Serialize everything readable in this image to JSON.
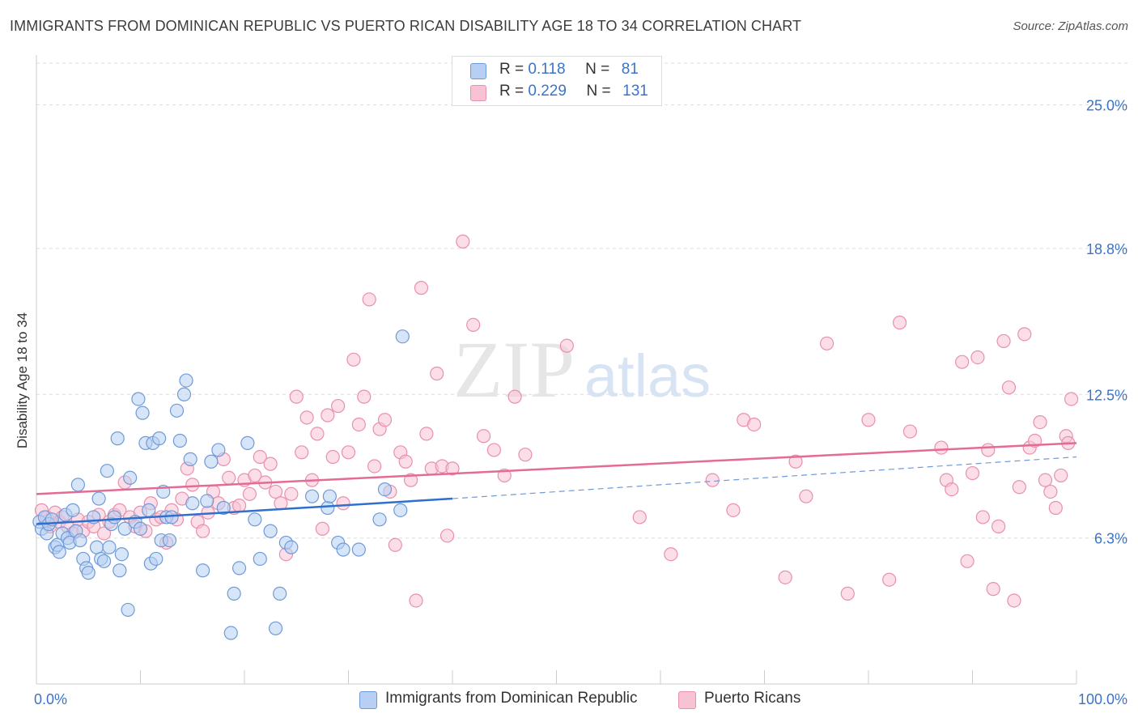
{
  "header": {
    "title": "IMMIGRANTS FROM DOMINICAN REPUBLIC VS PUERTO RICAN DISABILITY AGE 18 TO 34 CORRELATION CHART",
    "source": "Source: ZipAtlas.com"
  },
  "watermark": {
    "zip": "ZIP",
    "atlas": "atlas"
  },
  "legend": {
    "rows": [
      {
        "r_label": "R =",
        "r_value": "0.118",
        "n_label": "N =",
        "n_value": "81"
      },
      {
        "r_label": "R =",
        "r_value": "0.229",
        "n_label": "N =",
        "n_value": "131"
      }
    ]
  },
  "colors": {
    "blue_fill": "#b6cff2",
    "blue_stroke": "#6f9ad8",
    "blue_line": "#2f6fcd",
    "pink_fill": "#f7c3d3",
    "pink_stroke": "#e890ad",
    "pink_line": "#e36b96",
    "grid": "#dddddd",
    "tick_text": "#3d73c7"
  },
  "chart_data": {
    "type": "scatter",
    "title": "IMMIGRANTS FROM DOMINICAN REPUBLIC VS PUERTO RICAN DISABILITY AGE 18 TO 34 CORRELATION CHART",
    "xlabel": "",
    "ylabel": "Disability Age 18 to 34",
    "xlim": [
      0,
      100
    ],
    "ylim": [
      0,
      26.8
    ],
    "x_tick_labels": [
      "0.0%",
      "100.0%"
    ],
    "y_ticks": [
      6.3,
      12.5,
      18.8,
      25.0
    ],
    "y_tick_labels": [
      "6.3%",
      "12.5%",
      "18.8%",
      "25.0%"
    ],
    "grid": true,
    "legend_position": "top-center",
    "series": [
      {
        "name": "Immigrants from Dominican Republic",
        "color": "#6f9ad8",
        "trend": {
          "x": [
            0,
            40
          ],
          "y": [
            6.9,
            8.0
          ],
          "dashed_to": [
            100,
            9.8
          ]
        },
        "points": [
          [
            0.3,
            7.0
          ],
          [
            0.5,
            6.7
          ],
          [
            0.8,
            7.2
          ],
          [
            1.0,
            6.5
          ],
          [
            1.2,
            6.9
          ],
          [
            1.5,
            7.1
          ],
          [
            1.8,
            5.9
          ],
          [
            2.0,
            6.0
          ],
          [
            2.2,
            5.7
          ],
          [
            2.5,
            6.5
          ],
          [
            2.8,
            7.3
          ],
          [
            3.0,
            6.3
          ],
          [
            3.2,
            6.1
          ],
          [
            3.5,
            7.5
          ],
          [
            3.8,
            6.6
          ],
          [
            4.0,
            8.6
          ],
          [
            4.2,
            6.2
          ],
          [
            4.5,
            5.4
          ],
          [
            4.8,
            5.0
          ],
          [
            5.0,
            4.8
          ],
          [
            5.5,
            7.2
          ],
          [
            5.8,
            5.9
          ],
          [
            6.0,
            8.0
          ],
          [
            6.2,
            5.4
          ],
          [
            6.5,
            5.3
          ],
          [
            6.8,
            9.2
          ],
          [
            7.0,
            5.9
          ],
          [
            7.2,
            6.9
          ],
          [
            7.5,
            7.2
          ],
          [
            7.8,
            10.6
          ],
          [
            8.0,
            4.9
          ],
          [
            8.2,
            5.6
          ],
          [
            8.5,
            6.7
          ],
          [
            8.8,
            3.2
          ],
          [
            9.0,
            8.9
          ],
          [
            9.5,
            7.0
          ],
          [
            9.8,
            12.3
          ],
          [
            10.0,
            6.7
          ],
          [
            10.2,
            11.7
          ],
          [
            10.5,
            10.4
          ],
          [
            10.8,
            7.5
          ],
          [
            11.0,
            5.2
          ],
          [
            11.2,
            10.4
          ],
          [
            11.5,
            5.4
          ],
          [
            11.8,
            10.6
          ],
          [
            12.0,
            6.2
          ],
          [
            12.2,
            8.3
          ],
          [
            12.5,
            7.2
          ],
          [
            12.8,
            6.2
          ],
          [
            13.0,
            7.2
          ],
          [
            13.5,
            11.8
          ],
          [
            13.8,
            10.5
          ],
          [
            14.2,
            12.5
          ],
          [
            14.4,
            13.1
          ],
          [
            14.8,
            9.7
          ],
          [
            15.0,
            7.8
          ],
          [
            16.0,
            4.9
          ],
          [
            16.4,
            7.9
          ],
          [
            16.8,
            9.6
          ],
          [
            17.5,
            10.1
          ],
          [
            18.0,
            7.6
          ],
          [
            18.7,
            2.2
          ],
          [
            19.0,
            3.9
          ],
          [
            19.5,
            5.0
          ],
          [
            20.3,
            10.4
          ],
          [
            21.0,
            7.1
          ],
          [
            21.5,
            5.4
          ],
          [
            22.5,
            6.6
          ],
          [
            23.0,
            2.4
          ],
          [
            23.4,
            3.9
          ],
          [
            24.0,
            6.1
          ],
          [
            24.5,
            5.9
          ],
          [
            26.5,
            8.1
          ],
          [
            28.0,
            7.6
          ],
          [
            28.2,
            8.1
          ],
          [
            29.0,
            6.1
          ],
          [
            29.5,
            5.8
          ],
          [
            31.0,
            5.8
          ],
          [
            33.0,
            7.1
          ],
          [
            33.5,
            8.4
          ],
          [
            35.0,
            7.5
          ],
          [
            35.2,
            15.0
          ]
        ]
      },
      {
        "name": "Puerto Ricans",
        "color": "#e890ad",
        "trend": {
          "x": [
            0,
            100
          ],
          "y": [
            8.2,
            10.4
          ]
        },
        "points": [
          [
            0.5,
            7.5
          ],
          [
            1.0,
            7.2
          ],
          [
            1.3,
            6.8
          ],
          [
            1.8,
            7.4
          ],
          [
            2.2,
            7.0
          ],
          [
            2.5,
            7.2
          ],
          [
            3.0,
            6.8
          ],
          [
            3.5,
            6.5
          ],
          [
            4.0,
            7.1
          ],
          [
            4.5,
            6.6
          ],
          [
            5.0,
            7.0
          ],
          [
            5.5,
            6.8
          ],
          [
            6.0,
            7.3
          ],
          [
            6.5,
            6.5
          ],
          [
            7.0,
            7.0
          ],
          [
            7.5,
            7.3
          ],
          [
            8.0,
            7.5
          ],
          [
            8.5,
            8.7
          ],
          [
            9.0,
            7.2
          ],
          [
            9.5,
            6.8
          ],
          [
            10.0,
            7.4
          ],
          [
            10.5,
            6.6
          ],
          [
            11.0,
            7.8
          ],
          [
            11.5,
            7.1
          ],
          [
            12.0,
            7.2
          ],
          [
            12.5,
            6.1
          ],
          [
            13.0,
            7.5
          ],
          [
            13.5,
            7.1
          ],
          [
            14.0,
            8.0
          ],
          [
            14.5,
            9.3
          ],
          [
            15.0,
            8.6
          ],
          [
            15.5,
            7.0
          ],
          [
            16.0,
            6.6
          ],
          [
            16.5,
            7.4
          ],
          [
            17.0,
            8.3
          ],
          [
            17.5,
            7.8
          ],
          [
            18.0,
            9.7
          ],
          [
            18.5,
            8.9
          ],
          [
            19.0,
            7.6
          ],
          [
            19.5,
            7.7
          ],
          [
            20.0,
            8.8
          ],
          [
            20.5,
            8.2
          ],
          [
            21.0,
            9.0
          ],
          [
            21.5,
            9.8
          ],
          [
            22.0,
            8.7
          ],
          [
            22.5,
            9.5
          ],
          [
            23.0,
            8.3
          ],
          [
            23.5,
            7.8
          ],
          [
            24.0,
            5.6
          ],
          [
            24.5,
            8.2
          ],
          [
            25.0,
            12.4
          ],
          [
            25.5,
            10.0
          ],
          [
            26.0,
            11.5
          ],
          [
            26.5,
            8.8
          ],
          [
            27.0,
            10.8
          ],
          [
            27.5,
            6.7
          ],
          [
            28.0,
            11.6
          ],
          [
            28.5,
            9.8
          ],
          [
            29.0,
            12.0
          ],
          [
            29.5,
            7.8
          ],
          [
            30.0,
            10.0
          ],
          [
            30.5,
            14.0
          ],
          [
            31.0,
            11.2
          ],
          [
            31.5,
            12.4
          ],
          [
            32.0,
            16.6
          ],
          [
            32.5,
            9.4
          ],
          [
            33.0,
            11.0
          ],
          [
            33.5,
            11.4
          ],
          [
            34.0,
            8.3
          ],
          [
            34.5,
            6.0
          ],
          [
            35.0,
            10.0
          ],
          [
            35.5,
            9.6
          ],
          [
            36.0,
            8.8
          ],
          [
            36.5,
            3.6
          ],
          [
            37.0,
            17.1
          ],
          [
            37.5,
            10.8
          ],
          [
            38.0,
            9.3
          ],
          [
            38.5,
            13.4
          ],
          [
            39.0,
            9.4
          ],
          [
            39.5,
            6.4
          ],
          [
            40.0,
            9.3
          ],
          [
            41.0,
            19.1
          ],
          [
            42.0,
            15.5
          ],
          [
            43.0,
            10.7
          ],
          [
            44.0,
            10.1
          ],
          [
            45.0,
            9.0
          ],
          [
            46.0,
            12.4
          ],
          [
            47.0,
            9.9
          ],
          [
            51.0,
            14.6
          ],
          [
            58.0,
            7.2
          ],
          [
            61.0,
            5.6
          ],
          [
            65.0,
            8.8
          ],
          [
            67.0,
            7.5
          ],
          [
            68.0,
            11.4
          ],
          [
            69.0,
            11.2
          ],
          [
            72.0,
            4.6
          ],
          [
            73.0,
            9.6
          ],
          [
            74.0,
            8.1
          ],
          [
            76.0,
            14.7
          ],
          [
            78.0,
            3.9
          ],
          [
            80.0,
            11.4
          ],
          [
            82.0,
            4.5
          ],
          [
            83.0,
            15.6
          ],
          [
            84.0,
            10.9
          ],
          [
            87.0,
            10.2
          ],
          [
            87.5,
            8.8
          ],
          [
            88.0,
            8.4
          ],
          [
            89.0,
            13.9
          ],
          [
            89.5,
            5.3
          ],
          [
            90.0,
            9.1
          ],
          [
            90.5,
            14.1
          ],
          [
            91.0,
            7.2
          ],
          [
            91.5,
            10.1
          ],
          [
            92.0,
            4.1
          ],
          [
            92.5,
            6.8
          ],
          [
            93.0,
            14.8
          ],
          [
            93.5,
            12.8
          ],
          [
            94.0,
            3.6
          ],
          [
            94.5,
            8.5
          ],
          [
            95.0,
            15.1
          ],
          [
            95.5,
            10.2
          ],
          [
            96.0,
            10.5
          ],
          [
            96.5,
            11.3
          ],
          [
            97.0,
            8.8
          ],
          [
            97.5,
            8.3
          ],
          [
            98.0,
            7.6
          ],
          [
            98.5,
            9.0
          ],
          [
            99.0,
            10.7
          ],
          [
            99.2,
            10.4
          ],
          [
            99.5,
            12.3
          ]
        ]
      }
    ]
  },
  "bottom_legend": {
    "items": [
      {
        "label": "Immigrants from Dominican Republic"
      },
      {
        "label": "Puerto Ricans"
      }
    ]
  }
}
